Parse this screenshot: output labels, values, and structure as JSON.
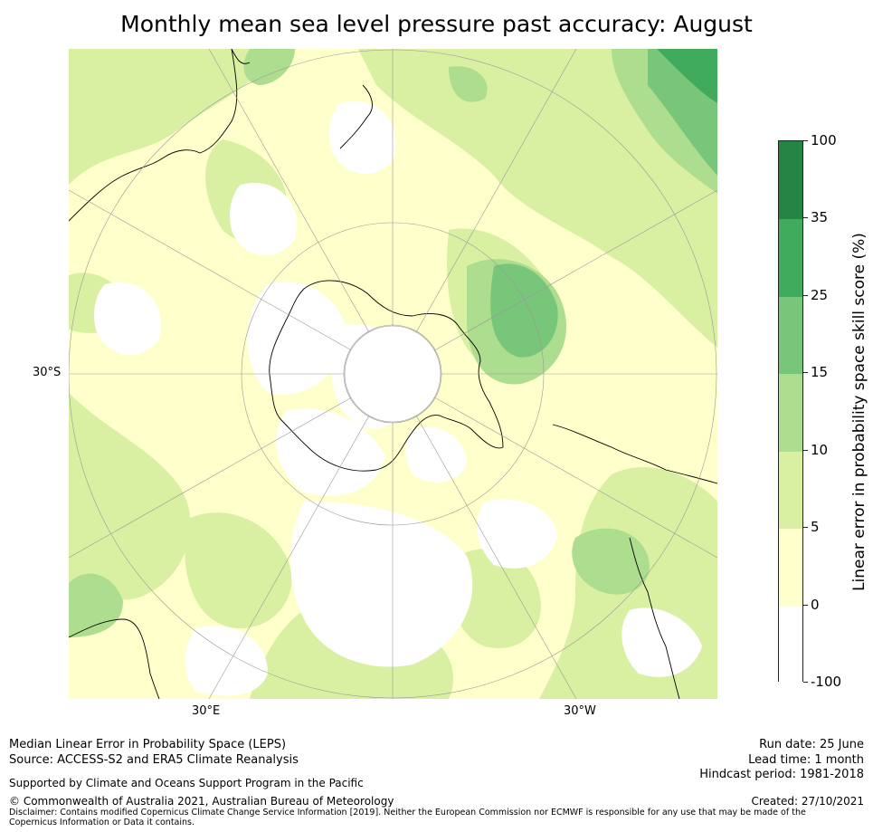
{
  "title": "Monthly mean sea level pressure past accuracy: August",
  "map": {
    "projection": "south-polar-stereographic",
    "lat_labels": [
      "30°S"
    ],
    "lon_labels": [
      "30°E",
      "30°W"
    ]
  },
  "colorbar": {
    "title": "Linear error in probability space skill score (%)",
    "ticks": [
      "100",
      "35",
      "25",
      "15",
      "10",
      "5",
      "0",
      "-100"
    ],
    "bins": [
      {
        "range": "-100 to 0",
        "color": "#ffffff"
      },
      {
        "range": "0 to 5",
        "color": "#ffffcc"
      },
      {
        "range": "5 to 10",
        "color": "#d9f0a3"
      },
      {
        "range": "10 to 15",
        "color": "#addd8e"
      },
      {
        "range": "15 to 25",
        "color": "#78c679"
      },
      {
        "range": "25 to 35",
        "color": "#41ab5d"
      },
      {
        "range": "35 to 100",
        "color": "#238443"
      }
    ]
  },
  "footer": {
    "left1": "Median Linear Error in Probability Space (LEPS)",
    "left2": "Source: ACCESS-S2 and ERA5 Climate Reanalysis",
    "support": "Supported by Climate and Oceans Support Program in the Pacific",
    "copyright": "© Commonwealth of Australia 2021, Australian Bureau of Meteorology",
    "disclaimer": "Disclaimer: Contains modified Copernicus Climate Change Service Information [2019]. Neither the European Commission nor ECMWF is responsible for any use that may be made of the Copernicus Information or Data it contains.",
    "run_date": "Run date: 25 June",
    "lead_time": "Lead time: 1 month",
    "hindcast": "Hindcast period: 1981-2018",
    "created": "Created: 27/10/2021"
  }
}
